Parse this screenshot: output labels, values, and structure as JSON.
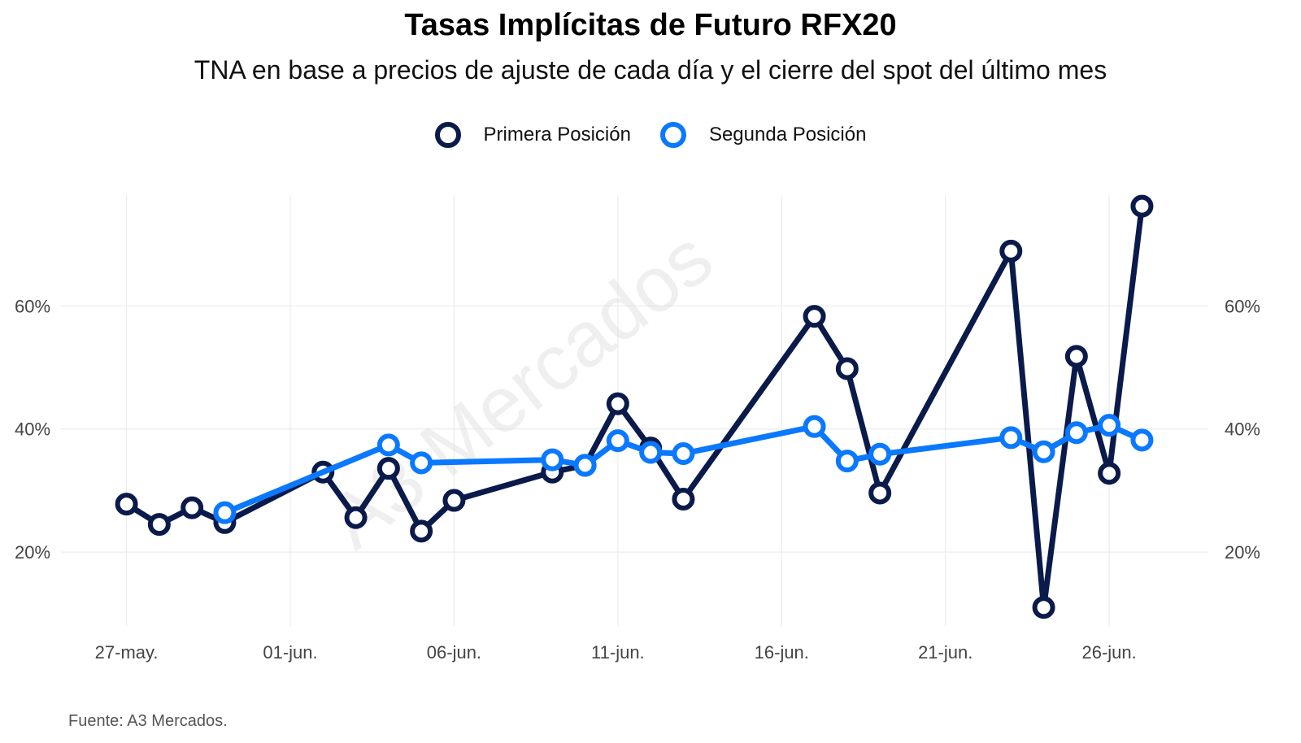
{
  "chart_data": {
    "type": "line",
    "title": "Tasas Implícitas de Futuro RFX20",
    "subtitle": "TNA en base a precios de ajuste de cada día y el cierre del spot del último mes",
    "source": "Fuente: A3 Mercados.",
    "watermark": "A3 Mercados",
    "xlim": [
      "2025-05-25",
      "2025-06-29"
    ],
    "ylim": [
      8,
      78
    ],
    "y_ticks": [
      20,
      40,
      60
    ],
    "y_tick_labels": [
      "20%",
      "40%",
      "60%"
    ],
    "x_ticks": [
      "2025-05-27",
      "2025-06-01",
      "2025-06-06",
      "2025-06-11",
      "2025-06-16",
      "2025-06-21",
      "2025-06-26"
    ],
    "x_tick_labels": [
      "27-may.",
      "01-jun.",
      "06-jun.",
      "11-jun.",
      "16-jun.",
      "21-jun.",
      "26-jun."
    ],
    "grid": true,
    "legend_position": "top",
    "series": [
      {
        "name": "Primera Posición",
        "color": "#0a1a4a",
        "x": [
          "2025-05-27",
          "2025-05-28",
          "2025-05-29",
          "2025-05-30",
          "2025-06-02",
          "2025-06-03",
          "2025-06-04",
          "2025-06-05",
          "2025-06-06",
          "2025-06-09",
          "2025-06-10",
          "2025-06-11",
          "2025-06-12",
          "2025-06-13",
          "2025-06-17",
          "2025-06-18",
          "2025-06-19",
          "2025-06-23",
          "2025-06-24",
          "2025-06-25",
          "2025-06-26",
          "2025-06-27"
        ],
        "y": [
          27.8,
          24.5,
          27.2,
          24.8,
          33.0,
          25.6,
          33.6,
          23.4,
          28.4,
          33.0,
          34.1,
          44.1,
          36.9,
          28.6,
          58.3,
          49.8,
          29.6,
          68.9,
          11.0,
          51.8,
          32.8,
          76.2
        ]
      },
      {
        "name": "Segunda Posición",
        "color": "#0a78ff",
        "x": [
          "2025-05-30",
          "2025-06-04",
          "2025-06-05",
          "2025-06-09",
          "2025-06-10",
          "2025-06-11",
          "2025-06-12",
          "2025-06-13",
          "2025-06-17",
          "2025-06-18",
          "2025-06-19",
          "2025-06-23",
          "2025-06-24",
          "2025-06-25",
          "2025-06-26",
          "2025-06-27"
        ],
        "y": [
          26.4,
          37.4,
          34.5,
          35.0,
          34.1,
          38.1,
          36.2,
          36.0,
          40.4,
          34.8,
          35.9,
          38.6,
          36.3,
          39.4,
          40.6,
          38.2
        ]
      }
    ]
  }
}
